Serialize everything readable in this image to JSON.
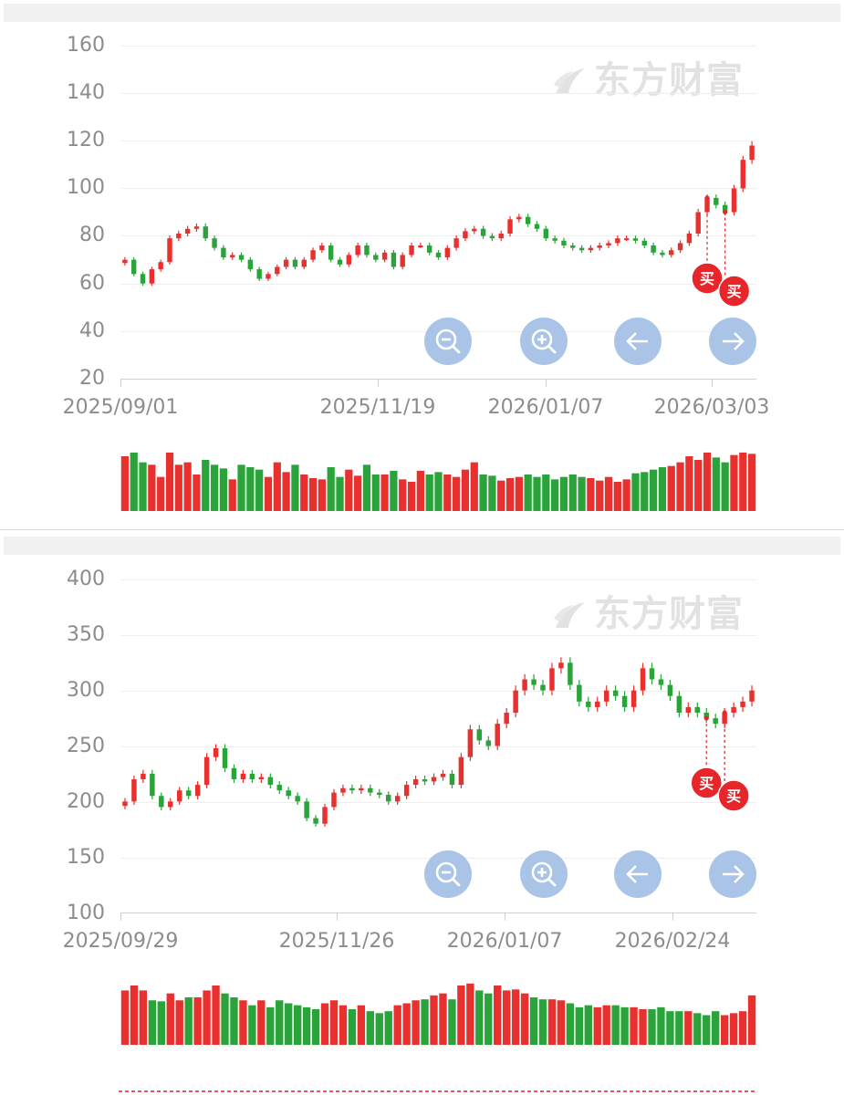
{
  "watermark": "东方财富",
  "buy_marker": "买",
  "colors": {
    "up": "#e8312f",
    "down": "#2aa33a",
    "button": "#a9c4e6",
    "marker": "#e6262a"
  },
  "controls": {
    "zoom_out": "zoom-out-icon",
    "zoom_in": "zoom-in-icon",
    "left": "arrow-left-icon",
    "right": "arrow-right-icon"
  },
  "chart_data": [
    {
      "type": "candlestick",
      "y_ticks": [
        "160",
        "140",
        "120",
        "100",
        "80",
        "60",
        "40",
        "20"
      ],
      "ylim": [
        20,
        160
      ],
      "x_ticks": [
        "2025/09/01",
        "2025/11/19",
        "2026/01/07",
        "2026/03/03"
      ],
      "closes": [
        70,
        64,
        60,
        66,
        69,
        79,
        81,
        83,
        84,
        79,
        75,
        71,
        72,
        70,
        66,
        62,
        64,
        67,
        70,
        67,
        70,
        74,
        76,
        70,
        68,
        72,
        76,
        72,
        70,
        73,
        67,
        72,
        76,
        76,
        73,
        71,
        75,
        79,
        82,
        83,
        80,
        79,
        81,
        87,
        88,
        85,
        83,
        79,
        78,
        76,
        75,
        74,
        75,
        76,
        77,
        79,
        79,
        78,
        76,
        73,
        72,
        74,
        77,
        81,
        90,
        96,
        93,
        90,
        100,
        112,
        118
      ],
      "volume_up": [
        45,
        30,
        32,
        38,
        28,
        48,
        38,
        40,
        30,
        27,
        32,
        31,
        26,
        28,
        32,
        35,
        28,
        40,
        32,
        24,
        30,
        27,
        26,
        30,
        28,
        34,
        29,
        24,
        28,
        30,
        22,
        26,
        24,
        33,
        25,
        22,
        30,
        28,
        34,
        40,
        56,
        33,
        25,
        27,
        28,
        29,
        27,
        24,
        22,
        26,
        23,
        26,
        27,
        25,
        28,
        24,
        26,
        27,
        30,
        36,
        33,
        37,
        40,
        45,
        42,
        48,
        50,
        46,
        46,
        48,
        47
      ],
      "volume_down": [
        42,
        48,
        40,
        50,
        45,
        48,
        46,
        44,
        40,
        42,
        38,
        35,
        40,
        38,
        36,
        34,
        38,
        36,
        40,
        38,
        32,
        34,
        30,
        36,
        28,
        32,
        35,
        38,
        30,
        32,
        33,
        34,
        30,
        28,
        30,
        32,
        34,
        31,
        30,
        28,
        30,
        29,
        31,
        32,
        34,
        30,
        28,
        30,
        26,
        28,
        30,
        28,
        32,
        30,
        28,
        29,
        30,
        31,
        32,
        34,
        36,
        35,
        38,
        36,
        40,
        42,
        44,
        40,
        42,
        44,
        42
      ],
      "buy_marker_count": 2
    },
    {
      "type": "candlestick",
      "y_ticks": [
        "400",
        "350",
        "300",
        "250",
        "200",
        "150",
        "100"
      ],
      "ylim": [
        100,
        400
      ],
      "x_ticks": [
        "2025/09/29",
        "2025/11/26",
        "2026/01/07",
        "2026/02/24"
      ],
      "closes": [
        200,
        220,
        225,
        205,
        195,
        200,
        210,
        205,
        215,
        240,
        248,
        230,
        220,
        225,
        220,
        222,
        215,
        210,
        205,
        200,
        185,
        180,
        195,
        208,
        212,
        210,
        212,
        208,
        206,
        200,
        205,
        215,
        220,
        218,
        222,
        225,
        215,
        240,
        265,
        255,
        250,
        270,
        280,
        300,
        310,
        305,
        300,
        320,
        325,
        305,
        290,
        285,
        290,
        300,
        295,
        285,
        300,
        320,
        310,
        305,
        295,
        280,
        285,
        280,
        275,
        270,
        280,
        285,
        290,
        300
      ],
      "volume_up": [
        55,
        60,
        55,
        50,
        48,
        52,
        45,
        50,
        48,
        55,
        60,
        58,
        50,
        45,
        42,
        45,
        40,
        48,
        44,
        42,
        40,
        38,
        42,
        45,
        40,
        38,
        40,
        35,
        32,
        35,
        40,
        42,
        45,
        48,
        50,
        52,
        48,
        60,
        62,
        58,
        55,
        60,
        55,
        56,
        52,
        50,
        48,
        46,
        45,
        44,
        40,
        42,
        38,
        40,
        42,
        40,
        38,
        36,
        38,
        40,
        36,
        35,
        34,
        33,
        32,
        36,
        30,
        32,
        34,
        50
      ],
      "volume_down": [
        50,
        52,
        48,
        45,
        44,
        50,
        42,
        48,
        46,
        50,
        55,
        52,
        48,
        42,
        40,
        44,
        38,
        45,
        42,
        40,
        38,
        36,
        40,
        42,
        38,
        36,
        38,
        34,
        32,
        34,
        38,
        40,
        42,
        46,
        48,
        50,
        46,
        55,
        58,
        55,
        52,
        56,
        52,
        54,
        50,
        48,
        46,
        44,
        42,
        42,
        38,
        40,
        36,
        38,
        40,
        38,
        36,
        34,
        36,
        38,
        34,
        34,
        32,
        32,
        30,
        34,
        28,
        30,
        32,
        46
      ],
      "buy_marker_count": 2
    }
  ]
}
